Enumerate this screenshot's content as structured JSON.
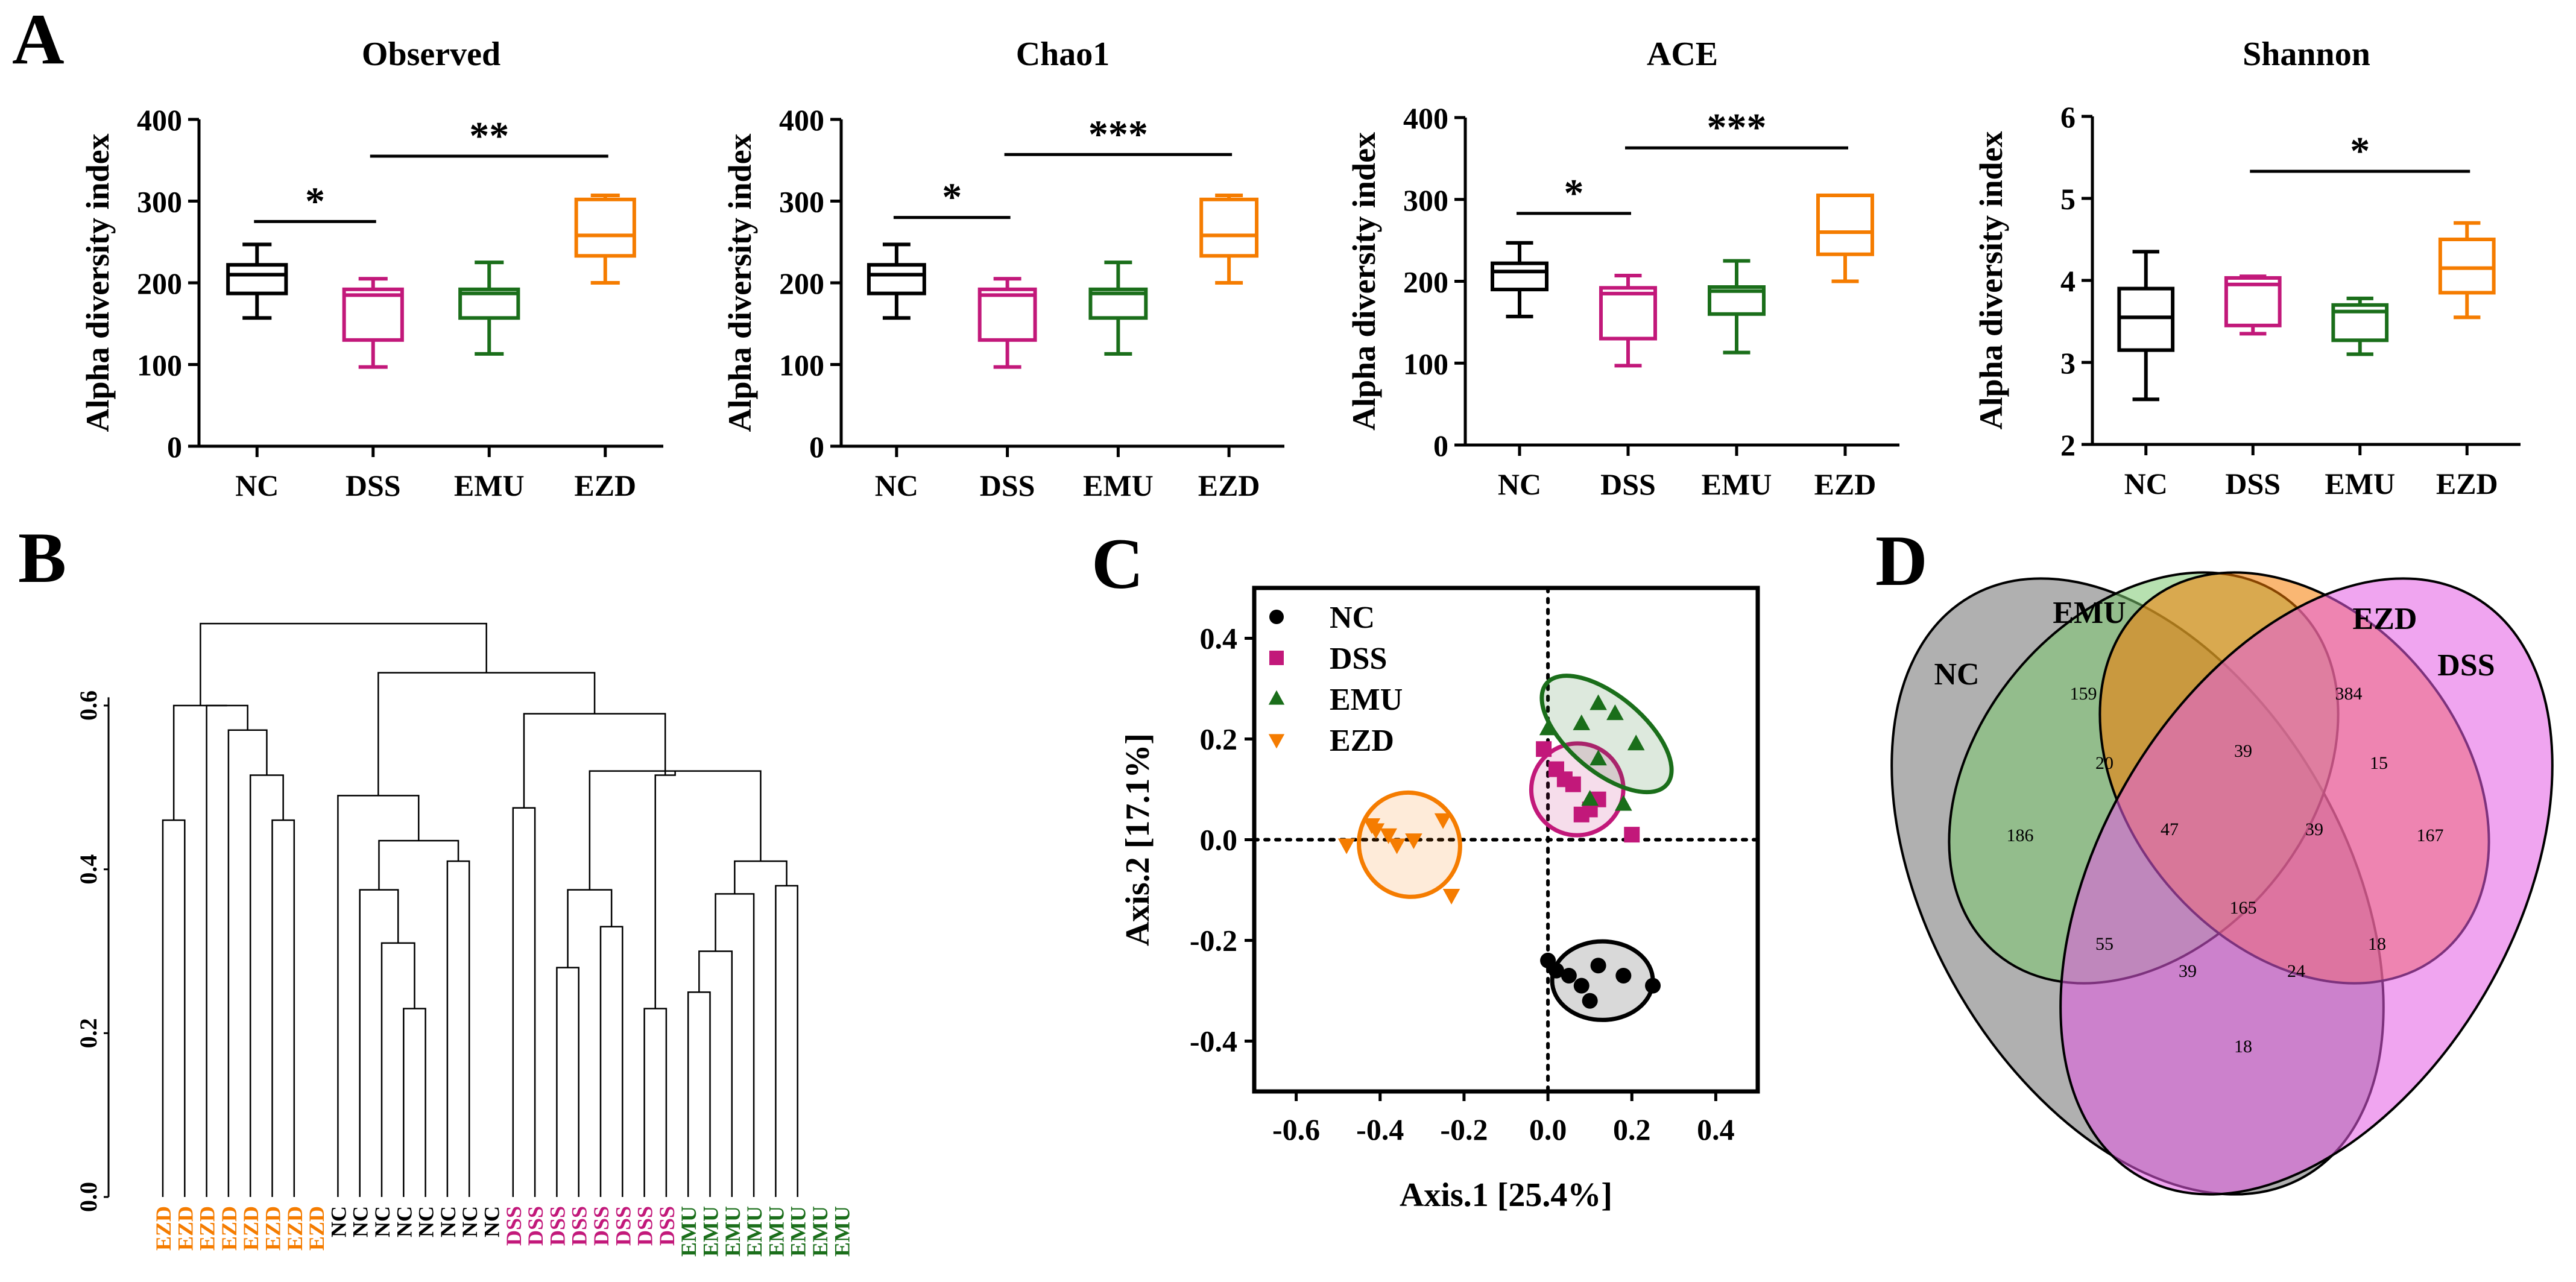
{
  "figure": {
    "panel_labels": [
      "A",
      "B",
      "C",
      "D"
    ],
    "colors": {
      "NC": "#000000",
      "DSS": "#c2187a",
      "EMU": "#1a6e1a",
      "EZD": "#f57c00",
      "axis": "#000000"
    }
  },
  "chart_data": [
    {
      "id": "A1",
      "type": "box",
      "title": "Observed",
      "ylabel": "Alpha diversity index",
      "categories": [
        "NC",
        "DSS",
        "EMU",
        "EZD"
      ],
      "ylim": [
        0,
        400
      ],
      "yticks": [
        0,
        100,
        200,
        300,
        400
      ],
      "boxes": [
        {
          "group": "NC",
          "min": 157,
          "q1": 187,
          "median": 210,
          "q3": 222,
          "max": 247
        },
        {
          "group": "DSS",
          "min": 97,
          "q1": 130,
          "median": 185,
          "q3": 192,
          "max": 205
        },
        {
          "group": "EMU",
          "min": 113,
          "q1": 157,
          "median": 187,
          "q3": 192,
          "max": 225
        },
        {
          "group": "EZD",
          "min": 200,
          "q1": 233,
          "median": 258,
          "q3": 302,
          "max": 307
        }
      ],
      "significance": [
        {
          "from": "NC",
          "to": "DSS",
          "label": "*",
          "y": 275
        },
        {
          "from": "DSS",
          "to": "EZD",
          "label": "**",
          "y": 355
        }
      ]
    },
    {
      "id": "A2",
      "type": "box",
      "title": "Chao1",
      "ylabel": "Alpha diversity index",
      "categories": [
        "NC",
        "DSS",
        "EMU",
        "EZD"
      ],
      "ylim": [
        0,
        400
      ],
      "yticks": [
        0,
        100,
        200,
        300,
        400
      ],
      "boxes": [
        {
          "group": "NC",
          "min": 157,
          "q1": 187,
          "median": 210,
          "q3": 222,
          "max": 247
        },
        {
          "group": "DSS",
          "min": 97,
          "q1": 130,
          "median": 185,
          "q3": 192,
          "max": 205
        },
        {
          "group": "EMU",
          "min": 113,
          "q1": 157,
          "median": 187,
          "q3": 192,
          "max": 225
        },
        {
          "group": "EZD",
          "min": 200,
          "q1": 233,
          "median": 258,
          "q3": 302,
          "max": 307
        }
      ],
      "significance": [
        {
          "from": "NC",
          "to": "DSS",
          "label": "*",
          "y": 280
        },
        {
          "from": "DSS",
          "to": "EZD",
          "label": "***",
          "y": 357
        }
      ]
    },
    {
      "id": "A3",
      "type": "box",
      "title": "ACE",
      "ylabel": "Alpha diversity index",
      "categories": [
        "NC",
        "DSS",
        "EMU",
        "EZD"
      ],
      "ylim": [
        0,
        400
      ],
      "yticks": [
        0,
        100,
        200,
        300,
        400
      ],
      "boxes": [
        {
          "group": "NC",
          "min": 157,
          "q1": 190,
          "median": 212,
          "q3": 222,
          "max": 247
        },
        {
          "group": "DSS",
          "min": 97,
          "q1": 130,
          "median": 185,
          "q3": 192,
          "max": 207
        },
        {
          "group": "EMU",
          "min": 113,
          "q1": 160,
          "median": 188,
          "q3": 193,
          "max": 225
        },
        {
          "group": "EZD",
          "min": 200,
          "q1": 233,
          "median": 260,
          "q3": 305,
          "max": 305
        }
      ],
      "significance": [
        {
          "from": "NC",
          "to": "DSS",
          "label": "*",
          "y": 283
        },
        {
          "from": "DSS",
          "to": "EZD",
          "label": "***",
          "y": 363
        }
      ]
    },
    {
      "id": "A4",
      "type": "box",
      "title": "Shannon",
      "ylabel": "Alpha diversity index",
      "categories": [
        "NC",
        "DSS",
        "EMU",
        "EZD"
      ],
      "ylim": [
        2,
        6
      ],
      "yticks": [
        2,
        3,
        4,
        5,
        6
      ],
      "boxes": [
        {
          "group": "NC",
          "min": 2.55,
          "q1": 3.15,
          "median": 3.55,
          "q3": 3.9,
          "max": 4.35
        },
        {
          "group": "DSS",
          "min": 3.35,
          "q1": 3.45,
          "median": 3.95,
          "q3": 4.03,
          "max": 4.05
        },
        {
          "group": "EMU",
          "min": 3.1,
          "q1": 3.27,
          "median": 3.62,
          "q3": 3.7,
          "max": 3.78
        },
        {
          "group": "EZD",
          "min": 3.55,
          "q1": 3.85,
          "median": 4.15,
          "q3": 4.5,
          "max": 4.7
        }
      ],
      "significance": [
        {
          "from": "DSS",
          "to": "EZD",
          "label": "*",
          "y": 5.33
        }
      ]
    },
    {
      "id": "B",
      "type": "dendrogram",
      "ylim": [
        0.0,
        0.6
      ],
      "yticks": [
        "0.0",
        "0.2",
        "0.4",
        "0.6"
      ],
      "leaves": [
        {
          "label": "EZD",
          "group": "EZD"
        },
        {
          "label": "EZD",
          "group": "EZD"
        },
        {
          "label": "EZD",
          "group": "EZD"
        },
        {
          "label": "EZD",
          "group": "EZD"
        },
        {
          "label": "EZD",
          "group": "EZD"
        },
        {
          "label": "EZD",
          "group": "EZD"
        },
        {
          "label": "EZD",
          "group": "EZD"
        },
        {
          "label": "EZD",
          "group": "EZD"
        },
        {
          "label": "NC",
          "group": "NC"
        },
        {
          "label": "NC",
          "group": "NC"
        },
        {
          "label": "NC",
          "group": "NC"
        },
        {
          "label": "NC",
          "group": "NC"
        },
        {
          "label": "NC",
          "group": "NC"
        },
        {
          "label": "NC",
          "group": "NC"
        },
        {
          "label": "NC",
          "group": "NC"
        },
        {
          "label": "NC",
          "group": "NC"
        },
        {
          "label": "DSS",
          "group": "DSS"
        },
        {
          "label": "DSS",
          "group": "DSS"
        },
        {
          "label": "DSS",
          "group": "DSS"
        },
        {
          "label": "DSS",
          "group": "DSS"
        },
        {
          "label": "DSS",
          "group": "DSS"
        },
        {
          "label": "DSS",
          "group": "DSS"
        },
        {
          "label": "DSS",
          "group": "DSS"
        },
        {
          "label": "DSS",
          "group": "DSS"
        },
        {
          "label": "EMU",
          "group": "EMU"
        },
        {
          "label": "EMU",
          "group": "EMU"
        },
        {
          "label": "EMU",
          "group": "EMU"
        },
        {
          "label": "EMU",
          "group": "EMU"
        },
        {
          "label": "EMU",
          "group": "EMU"
        },
        {
          "label": "EMU",
          "group": "EMU"
        },
        {
          "label": "EMU",
          "group": "EMU"
        },
        {
          "label": "EMU",
          "group": "EMU"
        }
      ],
      "merges": [
        [
          0,
          1,
          0.46
        ],
        [
          5,
          6,
          0.46
        ],
        [
          4,
          "m1",
          0.515
        ],
        [
          3,
          "m2",
          0.57
        ],
        [
          2,
          "m3",
          0.6
        ],
        [
          "m0",
          "m4",
          0.6
        ],
        [
          11,
          12,
          0.23
        ],
        [
          10,
          "m6",
          0.31
        ],
        [
          9,
          "m7",
          0.375
        ],
        [
          13,
          14,
          0.41
        ],
        [
          "m8",
          "m9",
          0.435
        ],
        [
          8,
          "m10",
          0.49
        ],
        [
          16,
          17,
          0.475
        ],
        [
          18,
          19,
          0.28
        ],
        [
          20,
          21,
          0.33
        ],
        [
          "m13",
          "m14",
          0.375
        ],
        [
          22,
          23,
          0.23
        ],
        [
          24,
          25,
          0.25
        ],
        [
          26,
          "m17",
          0.3
        ],
        [
          27,
          "m18",
          0.37
        ],
        [
          28,
          29,
          0.38
        ],
        [
          "m19",
          "m20",
          0.41
        ],
        [
          "m15",
          "m21",
          0.52
        ],
        [
          "m16",
          "m22",
          0.515
        ],
        [
          "m12",
          "m23",
          0.59
        ],
        [
          "m11",
          "m24",
          0.64
        ],
        [
          "m5",
          "m25",
          0.7
        ]
      ]
    },
    {
      "id": "C",
      "type": "scatter",
      "xlabel": "Axis.1 [25.4%]",
      "ylabel": "Axis.2 [17.1%]",
      "xlim": [
        -0.7,
        0.5
      ],
      "ylim": [
        -0.5,
        0.5
      ],
      "xticks": [
        "-0.6",
        "-0.4",
        "-0.2",
        "0.0",
        "0.2",
        "0.4"
      ],
      "yticks": [
        "0.4",
        "0.2",
        "0.0",
        "-0.2",
        "-0.4"
      ],
      "legend": [
        "NC",
        "DSS",
        "EMU",
        "EZD"
      ],
      "series": [
        {
          "name": "NC",
          "marker": "circle",
          "points": [
            [
              0.0,
              -0.24
            ],
            [
              0.05,
              -0.27
            ],
            [
              0.12,
              -0.25
            ],
            [
              0.18,
              -0.27
            ],
            [
              0.25,
              -0.29
            ],
            [
              0.08,
              -0.29
            ],
            [
              0.02,
              -0.26
            ],
            [
              0.1,
              -0.32
            ]
          ],
          "ellipse": {
            "cx": 0.13,
            "cy": -0.28,
            "rx": 0.12,
            "ry": 0.03,
            "angle": 0
          }
        },
        {
          "name": "DSS",
          "marker": "square",
          "points": [
            [
              -0.01,
              0.18
            ],
            [
              0.02,
              0.14
            ],
            [
              0.06,
              0.11
            ],
            [
              0.1,
              0.06
            ],
            [
              0.04,
              0.12
            ],
            [
              0.12,
              0.08
            ],
            [
              0.08,
              0.05
            ],
            [
              0.2,
              0.01
            ]
          ],
          "ellipse": {
            "cx": 0.07,
            "cy": 0.1,
            "rx": 0.11,
            "ry": 0.035,
            "angle": -35
          }
        },
        {
          "name": "EMU",
          "marker": "triangle",
          "points": [
            [
              0.0,
              0.22
            ],
            [
              0.08,
              0.23
            ],
            [
              0.12,
              0.27
            ],
            [
              0.16,
              0.25
            ],
            [
              0.21,
              0.19
            ],
            [
              0.18,
              0.07
            ],
            [
              0.1,
              0.08
            ],
            [
              0.12,
              0.16
            ]
          ],
          "ellipse": {
            "cx": 0.14,
            "cy": 0.21,
            "rx": 0.09,
            "ry": 0.06,
            "angle": -50
          }
        },
        {
          "name": "EZD",
          "marker": "triangle-down",
          "points": [
            [
              -0.48,
              -0.01
            ],
            [
              -0.41,
              0.02
            ],
            [
              -0.38,
              0.01
            ],
            [
              -0.36,
              -0.01
            ],
            [
              -0.32,
              0.0
            ],
            [
              -0.25,
              0.04
            ],
            [
              -0.23,
              -0.11
            ],
            [
              -0.42,
              0.03
            ]
          ],
          "ellipse": {
            "cx": -0.33,
            "cy": -0.01,
            "rx": 0.12,
            "ry": 0.04,
            "angle": -20
          }
        }
      ]
    },
    {
      "id": "D",
      "type": "venn",
      "sets": [
        "NC",
        "EMU",
        "EZD",
        "DSS"
      ],
      "set_colors": {
        "NC": "#6f6f6f",
        "EMU": "#7cc870",
        "EZD": "#f57c00",
        "DSS": "#e35be3"
      },
      "regions": [
        {
          "label": "NC only",
          "value": 186
        },
        {
          "label": "EMU only",
          "value": 159
        },
        {
          "label": "EZD only",
          "value": 384
        },
        {
          "label": "DSS only",
          "value": 167
        },
        {
          "label": "NC&EMU",
          "value": 20
        },
        {
          "label": "EMU&EZD",
          "value": 39
        },
        {
          "label": "EZD&DSS",
          "value": 15
        },
        {
          "label": "NC&EMU&EZD",
          "value": 47
        },
        {
          "label": "EMU&EZD&DSS",
          "value": 39
        },
        {
          "label": "all",
          "value": 165
        },
        {
          "label": "NC&EZD",
          "value": 55
        },
        {
          "label": "EMU&DSS",
          "value": 18
        },
        {
          "label": "NC&EZD&DSS",
          "value": 39
        },
        {
          "label": "NC&EMU&DSS",
          "value": 24
        },
        {
          "label": "NC&DSS",
          "value": 18
        }
      ]
    }
  ]
}
